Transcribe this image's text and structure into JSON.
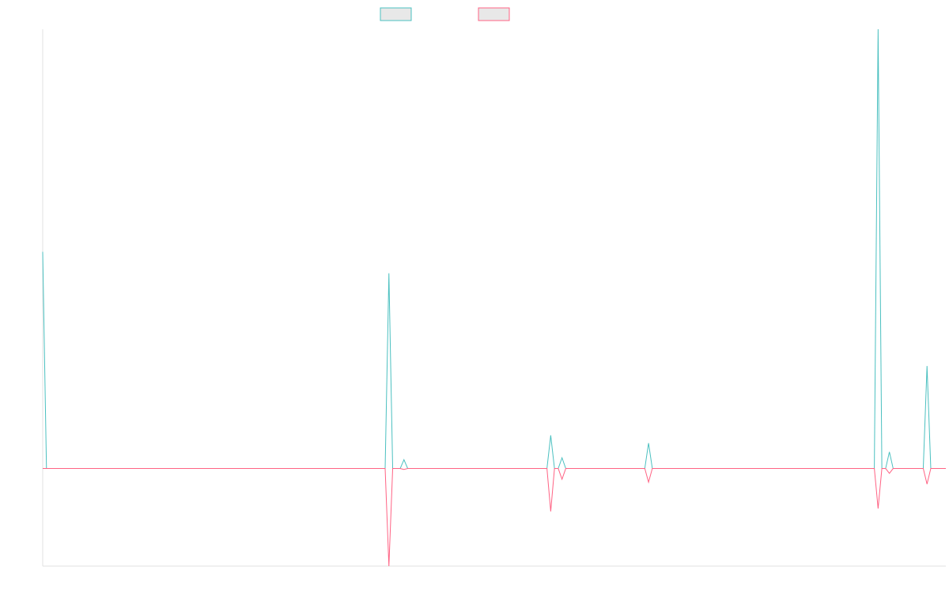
{
  "chart_data": {
    "type": "line",
    "title": "",
    "xlabel": "",
    "ylabel": "",
    "grid": false,
    "legend": "top-center",
    "ylim": [
      -100,
      450
    ],
    "x": [
      0,
      1,
      2,
      3,
      4,
      5,
      6,
      7,
      8,
      9,
      10,
      11,
      12,
      13,
      14,
      15,
      16,
      17,
      18,
      19,
      20,
      21,
      22,
      23,
      24,
      25,
      26,
      27,
      28,
      29,
      30,
      31,
      32,
      33,
      34,
      35,
      36,
      37,
      38,
      39,
      40,
      41,
      42,
      43,
      44,
      45,
      46,
      47,
      48,
      49,
      50,
      51,
      52,
      53,
      54,
      55,
      56,
      57,
      58,
      59,
      60,
      61,
      62,
      63,
      64,
      65,
      66,
      67,
      68,
      69,
      70,
      71,
      72,
      73,
      74,
      75,
      76,
      77,
      78,
      79,
      80,
      81,
      82,
      83,
      84,
      85,
      86,
      87,
      88,
      89,
      90,
      91,
      92,
      93,
      94,
      95,
      96,
      97,
      98,
      99,
      100,
      101,
      102,
      103,
      104,
      105,
      106,
      107,
      108,
      109,
      110,
      111,
      112,
      113,
      114,
      115,
      116,
      117,
      118,
      119,
      120,
      121,
      122,
      123,
      124,
      125,
      126,
      127,
      128,
      129,
      130,
      131,
      132,
      133,
      134,
      135,
      136,
      137,
      138,
      139,
      140,
      141,
      142,
      143,
      144,
      145,
      146,
      147,
      148,
      149,
      150,
      151,
      152,
      153,
      154,
      155,
      156,
      157,
      158,
      159,
      160,
      161,
      162,
      163,
      164,
      165,
      166,
      167,
      168,
      169,
      170,
      171,
      172,
      173,
      174,
      175,
      176,
      177,
      178,
      179,
      180,
      181,
      182,
      183,
      184,
      185,
      186,
      187,
      188,
      189,
      190,
      191,
      192,
      193,
      194,
      195,
      196,
      197,
      198,
      199,
      200,
      201,
      202,
      203,
      204,
      205,
      206,
      207,
      208,
      209,
      210,
      211,
      212,
      213,
      214,
      215,
      216,
      217,
      218,
      219,
      220,
      221,
      222,
      223,
      224,
      225,
      226,
      227,
      228,
      229,
      230,
      231,
      232,
      233,
      234,
      235,
      236,
      237,
      238,
      239,
      240
    ],
    "series": [
      {
        "name": "",
        "color": "#4bc0c0",
        "fill": "#e8e8e8",
        "points": [
          [
            0,
            222
          ],
          [
            1,
            0
          ],
          [
            91,
            0
          ],
          [
            92,
            200
          ],
          [
            93,
            0
          ],
          [
            95,
            0
          ],
          [
            96,
            9
          ],
          [
            97,
            0
          ],
          [
            134,
            0
          ],
          [
            135,
            34
          ],
          [
            136,
            0
          ],
          [
            137,
            0
          ],
          [
            138,
            11
          ],
          [
            139,
            0
          ],
          [
            160,
            0
          ],
          [
            161,
            26
          ],
          [
            162,
            0
          ],
          [
            221,
            0
          ],
          [
            222,
            450
          ],
          [
            223,
            0
          ],
          [
            224,
            0
          ],
          [
            225,
            17
          ],
          [
            226,
            0
          ],
          [
            234,
            0
          ],
          [
            235,
            105
          ],
          [
            236,
            0
          ],
          [
            240,
            0
          ]
        ]
      },
      {
        "name": "",
        "color": "#ff6384",
        "fill": "#e8e8e8",
        "points": [
          [
            0,
            0
          ],
          [
            91,
            0
          ],
          [
            92,
            -100
          ],
          [
            93,
            0
          ],
          [
            95,
            0
          ],
          [
            96,
            -1
          ],
          [
            97,
            0
          ],
          [
            134,
            0
          ],
          [
            135,
            -44
          ],
          [
            136,
            0
          ],
          [
            137,
            0
          ],
          [
            138,
            -11
          ],
          [
            139,
            0
          ],
          [
            160,
            0
          ],
          [
            161,
            -14
          ],
          [
            162,
            0
          ],
          [
            221,
            0
          ],
          [
            222,
            -41
          ],
          [
            223,
            0
          ],
          [
            224,
            0
          ],
          [
            225,
            -5
          ],
          [
            226,
            0
          ],
          [
            234,
            0
          ],
          [
            235,
            -16
          ],
          [
            236,
            0
          ],
          [
            240,
            0
          ]
        ]
      }
    ]
  }
}
